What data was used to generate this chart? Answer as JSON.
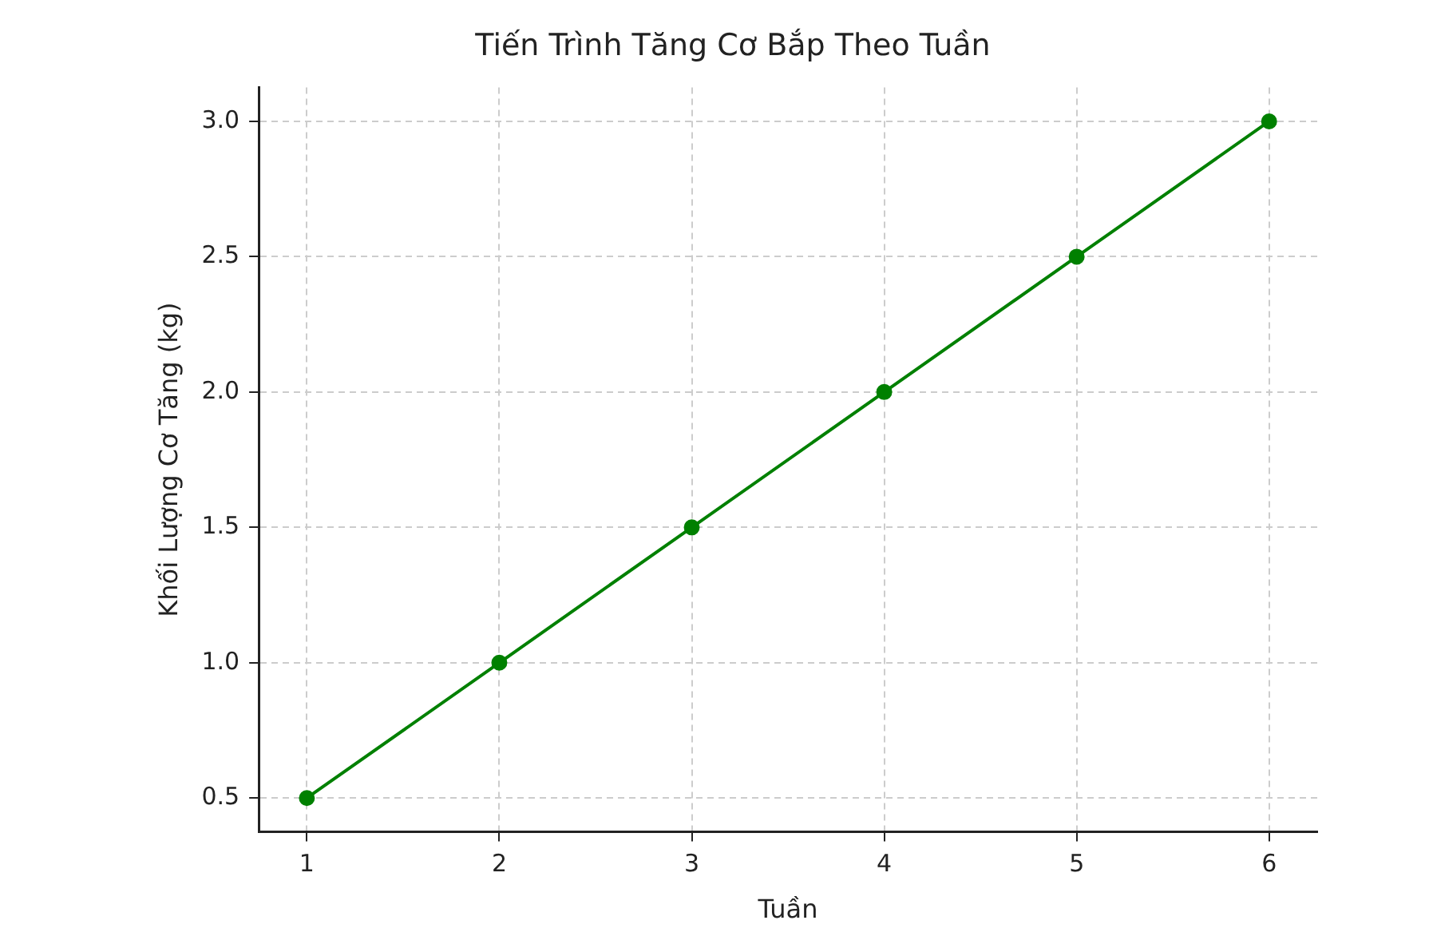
{
  "chart_data": {
    "type": "line",
    "title": "Tiến Trình Tăng Cơ Bắp Theo Tuần",
    "xlabel": "Tuần",
    "ylabel": "Khối Lượng Cơ Tăng (kg)",
    "x": [
      1,
      2,
      3,
      4,
      5,
      6
    ],
    "series": [
      {
        "color": "#008000",
        "values": [
          0.5,
          1.0,
          1.5,
          2.0,
          2.5,
          3.0
        ]
      }
    ],
    "xlim": [
      0.75,
      6.25
    ],
    "xticks": [
      1,
      2,
      3,
      4,
      5,
      6
    ],
    "ylim": [
      0.375,
      3.125
    ],
    "yticks": [
      {
        "value": 0.5,
        "label": "0.5"
      },
      {
        "value": 1,
        "label": "1.0"
      },
      {
        "value": 1.5,
        "label": "1.5"
      },
      {
        "value": 2,
        "label": "2.0"
      },
      {
        "value": 2.5,
        "label": "2.5"
      },
      {
        "value": 3,
        "label": "3.0"
      }
    ],
    "grid": true,
    "marker": "circle",
    "line_style": "solid"
  }
}
